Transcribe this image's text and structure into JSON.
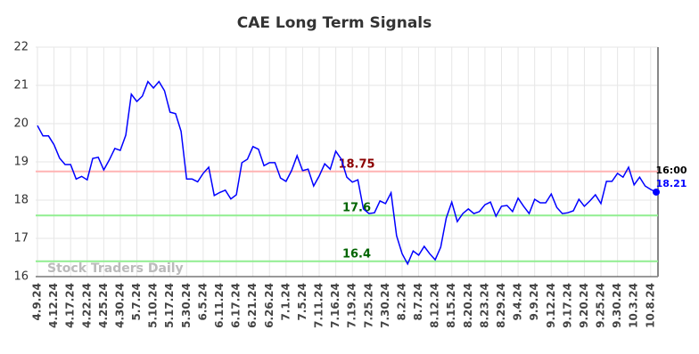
{
  "chart_data": {
    "type": "line",
    "title": "CAE Long Term Signals",
    "watermark": "Stock Traders Daily",
    "color": "#0000ff",
    "grid": true,
    "ylim": [
      16,
      22
    ],
    "yticks": [
      16,
      17,
      18,
      19,
      20,
      21,
      22
    ],
    "categories": [
      "4.9.24",
      null,
      null,
      "4.12.24",
      null,
      null,
      "4.17.24",
      null,
      null,
      "4.22.24",
      null,
      null,
      "4.25.24",
      null,
      null,
      "4.30.24",
      null,
      null,
      "5.7.24",
      null,
      null,
      "5.10.24",
      null,
      null,
      "5.17.24",
      null,
      null,
      "5.30.24",
      null,
      null,
      "6.5.24",
      null,
      null,
      "6.11.24",
      null,
      null,
      "6.17.24",
      null,
      null,
      "6.21.24",
      null,
      null,
      "6.26.24",
      null,
      null,
      "7.1.24",
      null,
      null,
      "7.5.24",
      null,
      null,
      "7.11.24",
      null,
      null,
      "7.16.24",
      null,
      null,
      "7.19.24",
      null,
      null,
      "7.25.24",
      null,
      null,
      "7.30.24",
      null,
      null,
      "8.2.24",
      null,
      null,
      "8.7.24",
      null,
      null,
      "8.12.24",
      null,
      null,
      "8.15.24",
      null,
      null,
      "8.20.24",
      null,
      null,
      "8.23.24",
      null,
      null,
      "8.29.24",
      null,
      null,
      "9.4.24",
      null,
      null,
      "9.9.24",
      null,
      null,
      "9.12.24",
      null,
      null,
      "9.17.24",
      null,
      null,
      "9.20.24",
      null,
      null,
      "9.25.24",
      null,
      null,
      "9.30.24",
      null,
      null,
      "10.3.24",
      null,
      null,
      "10.8.24",
      null
    ],
    "values": [
      19.95,
      19.68,
      19.68,
      19.45,
      19.1,
      18.93,
      18.93,
      18.55,
      18.62,
      18.53,
      19.09,
      19.12,
      18.79,
      19.05,
      19.35,
      19.3,
      19.7,
      20.77,
      20.58,
      20.72,
      21.1,
      20.93,
      21.1,
      20.86,
      20.3,
      20.26,
      19.8,
      18.55,
      18.55,
      18.48,
      18.7,
      18.86,
      18.12,
      18.2,
      18.26,
      18.03,
      18.14,
      18.98,
      19.07,
      19.4,
      19.33,
      18.9,
      18.98,
      18.98,
      18.58,
      18.49,
      18.77,
      19.16,
      18.77,
      18.81,
      18.37,
      18.63,
      18.95,
      18.81,
      19.28,
      19.07,
      18.6,
      18.47,
      18.53,
      17.77,
      17.65,
      17.67,
      17.98,
      17.91,
      18.19,
      17.07,
      16.6,
      16.33,
      16.67,
      16.56,
      16.79,
      16.6,
      16.44,
      16.77,
      17.53,
      17.95,
      17.44,
      17.65,
      17.77,
      17.65,
      17.7,
      17.88,
      17.95,
      17.58,
      17.84,
      17.86,
      17.7,
      18.05,
      17.84,
      17.65,
      18.02,
      17.93,
      17.93,
      18.16,
      17.81,
      17.65,
      17.67,
      17.72,
      18.02,
      17.84,
      17.98,
      18.14,
      17.91,
      18.49,
      18.49,
      18.7,
      18.6,
      18.86,
      18.4,
      18.6,
      18.37,
      18.28,
      18.21
    ],
    "last_time": "16:00",
    "levels": [
      {
        "value": 18.75,
        "color": "#ffb3b3",
        "label_color": "#8b0000"
      },
      {
        "value": 17.6,
        "color": "#90ee90",
        "label_color": "#006400"
      },
      {
        "value": 16.4,
        "color": "#90ee90",
        "label_color": "#006400"
      }
    ]
  }
}
